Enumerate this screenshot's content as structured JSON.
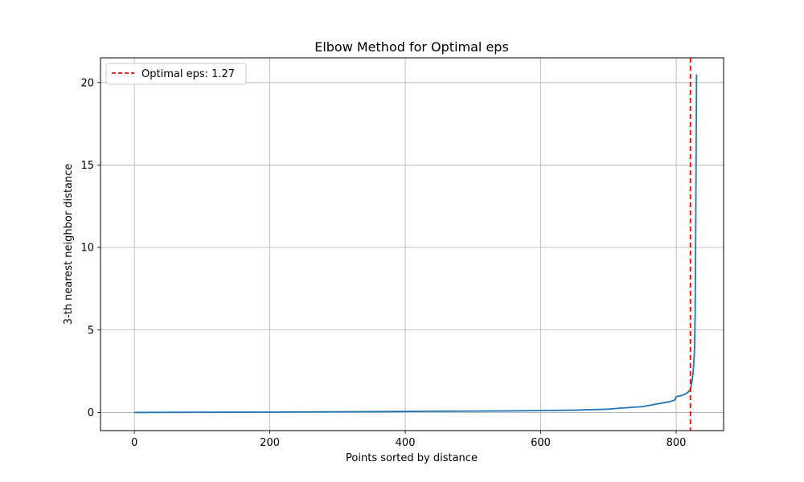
{
  "chart_data": {
    "type": "line",
    "title": "Elbow Method for Optimal eps",
    "xlabel": "Points sorted by distance",
    "ylabel": "3-th nearest neighbor distance",
    "xlim": [
      -50,
      870
    ],
    "ylim": [
      -1.1,
      21.5
    ],
    "xticks": [
      0,
      200,
      400,
      600,
      800
    ],
    "yticks": [
      0,
      5,
      10,
      15,
      20
    ],
    "grid": true,
    "legend_position": "top-left",
    "series": [
      {
        "name": "",
        "color": "#1f77b4",
        "x": [
          0,
          100,
          200,
          300,
          400,
          500,
          600,
          650,
          700,
          720,
          750,
          770,
          790,
          798,
          800,
          810,
          815,
          818,
          821,
          823,
          825,
          826,
          827,
          828,
          829,
          830
        ],
        "y": [
          0.0,
          0.01,
          0.02,
          0.04,
          0.06,
          0.08,
          0.11,
          0.14,
          0.2,
          0.27,
          0.35,
          0.5,
          0.65,
          0.75,
          0.95,
          1.05,
          1.15,
          1.25,
          1.4,
          1.8,
          2.4,
          3.0,
          3.7,
          6.0,
          12.0,
          20.5
        ]
      }
    ],
    "reference_line": {
      "orientation": "vertical",
      "x": 821,
      "color": "#ff0000",
      "style": "dashed",
      "legend_label": "Optimal eps: 1.27"
    }
  }
}
